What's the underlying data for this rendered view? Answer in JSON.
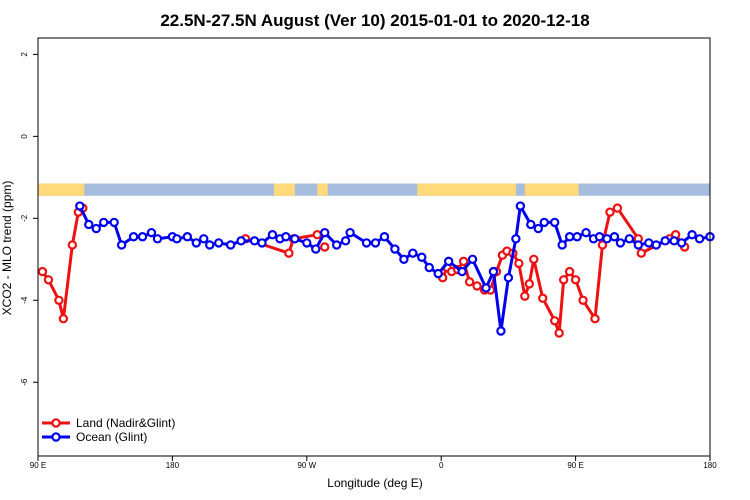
{
  "chart_data": {
    "type": "line",
    "title": "22.5N-27.5N August (Ver 10)   2015-01-01 to 2020-12-18",
    "xlabel": "Longitude (deg E)",
    "ylabel": "XCO2 - MLO trend (ppm)",
    "x_ticks": [
      {
        "value": 90,
        "label": "90 E"
      },
      {
        "value": 180,
        "label": "180"
      },
      {
        "value": 270,
        "label": "90 W"
      },
      {
        "value": 360,
        "label": "0"
      },
      {
        "value": 450,
        "label": "90 E"
      },
      {
        "value": 540,
        "label": "180"
      }
    ],
    "y_ticks": [
      {
        "value": 2,
        "label": "2"
      },
      {
        "value": 0,
        "label": "0"
      },
      {
        "value": -2,
        "label": "-2"
      },
      {
        "value": -4,
        "label": "-4"
      },
      {
        "value": -6,
        "label": "-6"
      }
    ],
    "xlim": [
      90,
      540
    ],
    "ylim": [
      -7.8,
      2.4
    ],
    "land_mask_band": {
      "y_range": [
        -1.45,
        -1.15
      ],
      "land_color": "#ffd97a",
      "ocean_color": "#a7bddd",
      "land_segments": [
        [
          90,
          121
        ],
        [
          248,
          262
        ],
        [
          277,
          284
        ],
        [
          344,
          410
        ],
        [
          416,
          452
        ]
      ]
    },
    "series": [
      {
        "name": "Land (Nadir&Glint)",
        "color": "#ee1111",
        "x": [
          93,
          97,
          104,
          107,
          113,
          117,
          120,
          229,
          258,
          261,
          277,
          282,
          361,
          364,
          367,
          371,
          375,
          379,
          384,
          389,
          393,
          397,
          401,
          404,
          408,
          412,
          416,
          419,
          422,
          428,
          436,
          439,
          442,
          446,
          450,
          455,
          463,
          468,
          473,
          478,
          492,
          494,
          513,
          517,
          523
        ],
        "y": [
          -3.3,
          -3.5,
          -4.0,
          -4.45,
          -2.65,
          -1.85,
          -1.75,
          -2.5,
          -2.85,
          -2.5,
          -2.4,
          -2.7,
          -3.45,
          -3.2,
          -3.3,
          -3.25,
          -3.05,
          -3.55,
          -3.65,
          -3.75,
          -3.75,
          -3.3,
          -2.9,
          -2.8,
          -2.85,
          -3.1,
          -3.9,
          -3.6,
          -3.0,
          -3.95,
          -4.5,
          -4.8,
          -3.5,
          -3.3,
          -3.5,
          -4.0,
          -4.45,
          -2.65,
          -1.85,
          -1.75,
          -2.5,
          -2.85,
          -2.5,
          -2.4,
          -2.7
        ],
        "segments": [
          [
            0,
            7
          ],
          [
            7,
            11
          ],
          [
            11,
            12
          ],
          [
            12,
            45
          ]
        ]
      },
      {
        "name": "Ocean (Glint)",
        "color": "#0000ee",
        "x": [
          118,
          124,
          129,
          134,
          141,
          146,
          154,
          160,
          166,
          170,
          180,
          183,
          190,
          196,
          201,
          205,
          211,
          219,
          226,
          235,
          240,
          247,
          252,
          256,
          262,
          270,
          276,
          282,
          290,
          296,
          299,
          310,
          316,
          322,
          329,
          335,
          341,
          347,
          352,
          358,
          365,
          374,
          381,
          390,
          395,
          400,
          405,
          410,
          413,
          420,
          425,
          429,
          436,
          441,
          446,
          451,
          457,
          462,
          466,
          471,
          476,
          480,
          486,
          492,
          499,
          504,
          510,
          516,
          521,
          528,
          533,
          540
        ],
        "y": [
          -1.7,
          -2.15,
          -2.25,
          -2.1,
          -2.1,
          -2.65,
          -2.45,
          -2.45,
          -2.35,
          -2.5,
          -2.45,
          -2.5,
          -2.45,
          -2.6,
          -2.5,
          -2.65,
          -2.6,
          -2.65,
          -2.55,
          -2.55,
          -2.6,
          -2.4,
          -2.5,
          -2.45,
          -2.5,
          -2.6,
          -2.75,
          -2.35,
          -2.65,
          -2.55,
          -2.35,
          -2.6,
          -2.6,
          -2.45,
          -2.75,
          -3.0,
          -2.85,
          -2.95,
          -3.2,
          -3.35,
          -3.05,
          -3.3,
          -3.0,
          -3.7,
          -3.3,
          -4.75,
          -3.45,
          -2.5,
          -1.7,
          -2.15,
          -2.25,
          -2.1,
          -2.1,
          -2.65,
          -2.45,
          -2.45,
          -2.35,
          -2.5,
          -2.45,
          -2.5,
          -2.45,
          -2.6,
          -2.5,
          -2.65,
          -2.6,
          -2.65,
          -2.55,
          -2.55,
          -2.6,
          -2.4,
          -2.5,
          -2.45
        ],
        "segments": [
          [
            0,
            72
          ]
        ]
      }
    ],
    "legend": {
      "position": "bottom-left"
    },
    "grid": false
  }
}
